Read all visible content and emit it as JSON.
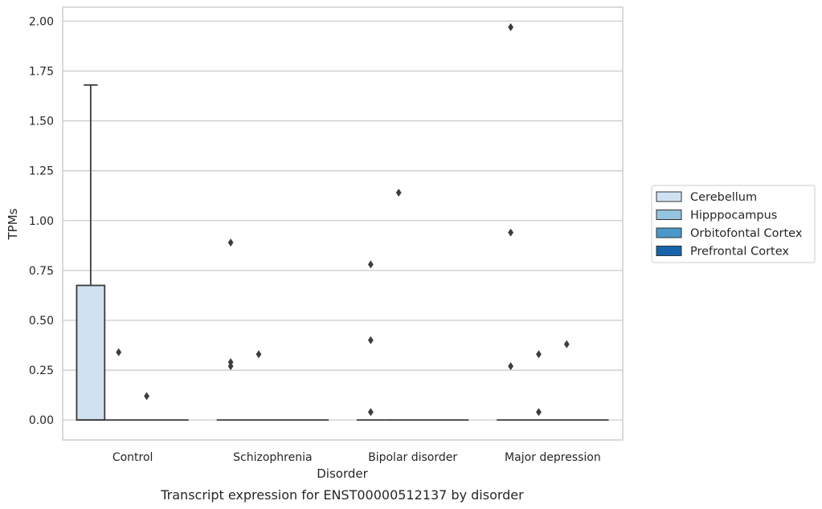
{
  "chart_data": {
    "type": "box",
    "title": "",
    "caption": "Transcript expression for ENST00000512137 by disorder",
    "xlabel": "Disorder",
    "ylabel": "TPMs",
    "ylim": [
      -0.1,
      2.07
    ],
    "yticks": [
      "0.00",
      "0.25",
      "0.50",
      "0.75",
      "1.00",
      "1.25",
      "1.50",
      "1.75",
      "2.00"
    ],
    "grid": "y",
    "legend_position": "right",
    "categories": [
      "Control",
      "Schizophrenia",
      "Bipolar disorder",
      "Major depression"
    ],
    "series": [
      {
        "name": "Cerebellum",
        "color": "#d0e1f2"
      },
      {
        "name": "Hipppocampus",
        "color": "#94c4df"
      },
      {
        "name": "Orbitofontal Cortex",
        "color": "#4a98c9"
      },
      {
        "name": "Prefrontal Cortex",
        "color": "#1764ab"
      }
    ],
    "boxes": [
      {
        "category": 0,
        "series": 0,
        "q1": 0.0,
        "median": 0.0,
        "q3": 0.675,
        "whisker_low": 0.0,
        "whisker_high": 1.68
      },
      {
        "category": 0,
        "series": 1,
        "q1": 0.0,
        "median": 0.0,
        "q3": 0.0,
        "whisker_low": 0.0,
        "whisker_high": 0.0
      },
      {
        "category": 0,
        "series": 2,
        "q1": 0.0,
        "median": 0.0,
        "q3": 0.0,
        "whisker_low": 0.0,
        "whisker_high": 0.0
      },
      {
        "category": 0,
        "series": 3,
        "q1": 0.0,
        "median": 0.0,
        "q3": 0.0,
        "whisker_low": 0.0,
        "whisker_high": 0.0
      },
      {
        "category": 1,
        "series": 0,
        "q1": 0.0,
        "median": 0.0,
        "q3": 0.0,
        "whisker_low": 0.0,
        "whisker_high": 0.0
      },
      {
        "category": 1,
        "series": 1,
        "q1": 0.0,
        "median": 0.0,
        "q3": 0.0,
        "whisker_low": 0.0,
        "whisker_high": 0.0
      },
      {
        "category": 1,
        "series": 2,
        "q1": 0.0,
        "median": 0.0,
        "q3": 0.0,
        "whisker_low": 0.0,
        "whisker_high": 0.0
      },
      {
        "category": 1,
        "series": 3,
        "q1": 0.0,
        "median": 0.0,
        "q3": 0.0,
        "whisker_low": 0.0,
        "whisker_high": 0.0
      },
      {
        "category": 2,
        "series": 0,
        "q1": 0.0,
        "median": 0.0,
        "q3": 0.0,
        "whisker_low": 0.0,
        "whisker_high": 0.0
      },
      {
        "category": 2,
        "series": 1,
        "q1": 0.0,
        "median": 0.0,
        "q3": 0.0,
        "whisker_low": 0.0,
        "whisker_high": 0.0
      },
      {
        "category": 2,
        "series": 2,
        "q1": 0.0,
        "median": 0.0,
        "q3": 0.0,
        "whisker_low": 0.0,
        "whisker_high": 0.0
      },
      {
        "category": 2,
        "series": 3,
        "q1": 0.0,
        "median": 0.0,
        "q3": 0.0,
        "whisker_low": 0.0,
        "whisker_high": 0.0
      },
      {
        "category": 3,
        "series": 0,
        "q1": 0.0,
        "median": 0.0,
        "q3": 0.0,
        "whisker_low": 0.0,
        "whisker_high": 0.0
      },
      {
        "category": 3,
        "series": 1,
        "q1": 0.0,
        "median": 0.0,
        "q3": 0.0,
        "whisker_low": 0.0,
        "whisker_high": 0.0
      },
      {
        "category": 3,
        "series": 2,
        "q1": 0.0,
        "median": 0.0,
        "q3": 0.0,
        "whisker_low": 0.0,
        "whisker_high": 0.0
      },
      {
        "category": 3,
        "series": 3,
        "q1": 0.0,
        "median": 0.0,
        "q3": 0.0,
        "whisker_low": 0.0,
        "whisker_high": 0.0
      }
    ],
    "outliers": [
      {
        "category": 0,
        "series": 1,
        "value": 0.34
      },
      {
        "category": 0,
        "series": 2,
        "value": 0.12
      },
      {
        "category": 1,
        "series": 0,
        "value": 0.89
      },
      {
        "category": 1,
        "series": 0,
        "value": 0.29
      },
      {
        "category": 1,
        "series": 0,
        "value": 0.27
      },
      {
        "category": 1,
        "series": 1,
        "value": 0.33
      },
      {
        "category": 2,
        "series": 0,
        "value": 0.78
      },
      {
        "category": 2,
        "series": 0,
        "value": 0.4
      },
      {
        "category": 2,
        "series": 0,
        "value": 0.04
      },
      {
        "category": 2,
        "series": 1,
        "value": 1.14
      },
      {
        "category": 3,
        "series": 0,
        "value": 1.97
      },
      {
        "category": 3,
        "series": 0,
        "value": 0.94
      },
      {
        "category": 3,
        "series": 0,
        "value": 0.27
      },
      {
        "category": 3,
        "series": 1,
        "value": 0.33
      },
      {
        "category": 3,
        "series": 1,
        "value": 0.04
      },
      {
        "category": 3,
        "series": 2,
        "value": 0.38
      }
    ]
  }
}
